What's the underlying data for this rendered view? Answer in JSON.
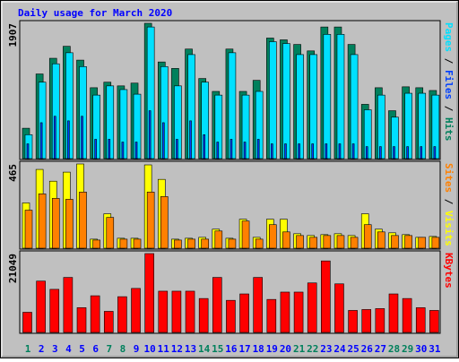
{
  "chart_data": [
    {
      "type": "bar",
      "title": "Daily usage for March 2020",
      "ylim": [
        0,
        1907
      ],
      "yticks": [
        1907
      ],
      "series": [
        {
          "name": "Hits",
          "color": "#00805c",
          "values": [
            428,
            1193,
            1414,
            1583,
            1388,
            999,
            1077,
            1025,
            1064,
            1907,
            1362,
            1271,
            1544,
            1129,
            947,
            1544,
            947,
            1103,
            1699,
            1674,
            1609,
            1518,
            1855,
            1855,
            1609,
            765,
            999,
            675,
            1012,
            999,
            960
          ]
        },
        {
          "name": "Files",
          "color": "#0040ff",
          "values": [
            208,
            506,
            597,
            532,
            597,
            272,
            272,
            233,
            233,
            675,
            506,
            272,
            532,
            337,
            233,
            272,
            233,
            272,
            208,
            208,
            208,
            208,
            208,
            208,
            208,
            169,
            169,
            169,
            169,
            169,
            169
          ]
        },
        {
          "name": "Pages",
          "color": "#00e0ff",
          "values": [
            337,
            1077,
            1336,
            1492,
            1297,
            895,
            1025,
            973,
            908,
            1855,
            1297,
            1025,
            1466,
            1077,
            895,
            1492,
            895,
            947,
            1648,
            1622,
            1466,
            1466,
            1751,
            1751,
            1466,
            688,
            895,
            584,
            921,
            921,
            895
          ]
        }
      ]
    },
    {
      "type": "bar",
      "ylim": [
        0,
        465
      ],
      "yticks": [
        465
      ],
      "series": [
        {
          "name": "Visits",
          "color": "#ffff00",
          "values": [
            250,
            435,
            370,
            420,
            465,
            50,
            190,
            55,
            55,
            460,
            380,
            50,
            55,
            60,
            105,
            55,
            160,
            60,
            160,
            160,
            80,
            70,
            75,
            80,
            70,
            190,
            105,
            85,
            75,
            60,
            65
          ]
        },
        {
          "name": "Sites",
          "color": "#ff8000",
          "values": [
            210,
            300,
            275,
            270,
            310,
            45,
            170,
            50,
            50,
            310,
            285,
            45,
            50,
            50,
            95,
            50,
            150,
            50,
            130,
            90,
            70,
            60,
            70,
            70,
            60,
            130,
            90,
            70,
            70,
            60,
            60
          ]
        }
      ]
    },
    {
      "type": "bar",
      "ylim": [
        0,
        21049
      ],
      "yticks": [
        21049
      ],
      "categories": [
        "1",
        "2",
        "3",
        "4",
        "5",
        "6",
        "7",
        "8",
        "9",
        "10",
        "11",
        "12",
        "13",
        "14",
        "15",
        "16",
        "17",
        "18",
        "19",
        "20",
        "21",
        "22",
        "23",
        "24",
        "25",
        "26",
        "27",
        "28",
        "29",
        "30",
        "31"
      ],
      "category_colors": [
        "#00805c",
        "#0000ff",
        "#0000ff",
        "#0000ff",
        "#0000ff",
        "#0000ff",
        "#00805c",
        "#00805c",
        "#0000ff",
        "#0000ff",
        "#0000ff",
        "#0000ff",
        "#0000ff",
        "#00805c",
        "#00805c",
        "#0000ff",
        "#0000ff",
        "#0000ff",
        "#0000ff",
        "#0000ff",
        "#00805c",
        "#00805c",
        "#0000ff",
        "#0000ff",
        "#0000ff",
        "#0000ff",
        "#0000ff",
        "#00805c",
        "#00805c",
        "#0000ff",
        "#0000ff"
      ],
      "series": [
        {
          "name": "KBytes",
          "color": "#ff0000",
          "values": [
            5385,
            13707,
            11504,
            14686,
            6608,
            9790,
            5630,
            9546,
            11748,
            21049,
            11014,
            11014,
            11014,
            9056,
            14686,
            8567,
            10280,
            14686,
            8811,
            10770,
            10770,
            13217,
            19091,
            12972,
            5874,
            6119,
            6364,
            10280,
            9056,
            6608,
            5874
          ]
        }
      ]
    }
  ]
}
